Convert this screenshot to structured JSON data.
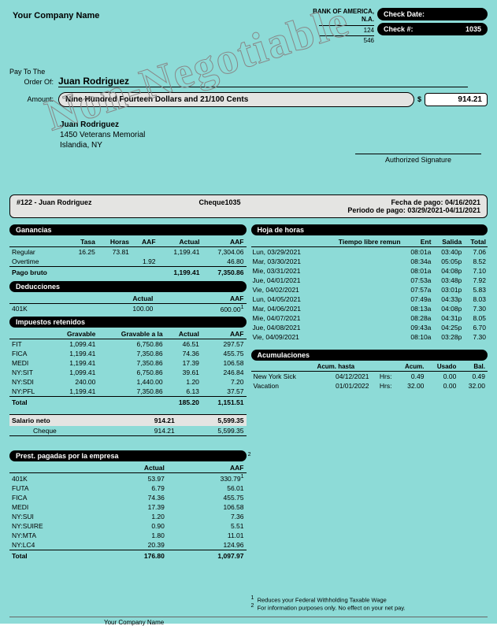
{
  "company_name": "Your Company Name",
  "bank": {
    "name": "BANK OF AMERICA,",
    "br": "N.A.",
    "n1": "124",
    "n2": "546"
  },
  "check": {
    "date_lbl": "Check Date:",
    "date_val": "",
    "num_lbl": "Check #:",
    "num_val": "1035"
  },
  "payto1": "Pay To The",
  "payto2": "Order Of:",
  "payee": "Juan Rodriguez",
  "amt_lbl": "Amount:",
  "amt_words": "Nine Hundred Fourteen Dollars and 21/100 Cents",
  "amt_val": "914.21",
  "addr": {
    "name": "Juan Rodriguez",
    "l1": "1450 Veterans Memorial",
    "l2": "Islandia, NY"
  },
  "sig": "Authorized Signature",
  "watermark": "Non-Negotiable",
  "stub": {
    "left": "#122 - Juan Rodriguez",
    "mid": "Cheque1035",
    "r1": "Fecha de pago: 04/16/2021",
    "r2": "Periodo de pago: 03/29/2021-04/11/2021"
  },
  "s": {
    "gan": "Ganancias",
    "ded": "Deducciones",
    "imp": "Impuestos retenidos",
    "net": "Salario neto",
    "prest": "Prest. pagadas por la empresa",
    "hoja": "Hoja de horas",
    "acum": "Acumulaciones"
  },
  "h": {
    "tasa": "Tasa",
    "horas": "Horas",
    "aaf": "AAF",
    "actual": "Actual",
    "gravable": "Gravable",
    "gravaaf": "Gravable a la",
    "tiempo": "Tiempo libre remun",
    "ent": "Ent",
    "sal": "Salida",
    "tot": "Total",
    "ahasta": "Acum. hasta",
    "acum": "Acum.",
    "usado": "Usado",
    "bal": "Bal."
  },
  "gan": {
    "rows": [
      {
        "l": "Regular",
        "tasa": "16.25",
        "horas": "73.81",
        "aaf1": "",
        "actual": "1,199.41",
        "aaf2": "7,304.06"
      },
      {
        "l": "Overtime",
        "tasa": "",
        "horas": "",
        "aaf1": "1.92",
        "actual": "",
        "aaf2": "46.80"
      }
    ],
    "tot": {
      "l": "Pago bruto",
      "actual": "1,199.41",
      "aaf": "7,350.86"
    }
  },
  "ded": {
    "rows": [
      {
        "l": "401K",
        "actual": "100.00",
        "aaf": "600.00"
      }
    ],
    "sup": "1"
  },
  "imp": {
    "rows": [
      {
        "l": "FIT",
        "g": "1,099.41",
        "ga": "6,750.86",
        "a": "46.51",
        "f": "297.57"
      },
      {
        "l": "FICA",
        "g": "1,199.41",
        "ga": "7,350.86",
        "a": "74.36",
        "f": "455.75"
      },
      {
        "l": "MEDI",
        "g": "1,199.41",
        "ga": "7,350.86",
        "a": "17.39",
        "f": "106.58"
      },
      {
        "l": "NY:SIT",
        "g": "1,099.41",
        "ga": "6,750.86",
        "a": "39.61",
        "f": "246.84"
      },
      {
        "l": "NY:SDI",
        "g": "240.00",
        "ga": "1,440.00",
        "a": "1.20",
        "f": "7.20"
      },
      {
        "l": "NY:PFL",
        "g": "1,199.41",
        "ga": "7,350.86",
        "a": "6.13",
        "f": "37.57"
      }
    ],
    "tot": {
      "l": "Total",
      "a": "185.20",
      "f": "1,151.51"
    }
  },
  "net": {
    "l": "Salario neto",
    "a": "914.21",
    "f": "5,599.35",
    "cheque": "Cheque",
    "ca": "914.21",
    "cf": "5,599.35"
  },
  "prest": {
    "rows": [
      {
        "l": "401K",
        "a": "53.97",
        "f": "330.79"
      },
      {
        "l": "FUTA",
        "a": "6.79",
        "f": "56.01"
      },
      {
        "l": "FICA",
        "a": "74.36",
        "f": "455.75"
      },
      {
        "l": "MEDI",
        "a": "17.39",
        "f": "106.58"
      },
      {
        "l": "NY:SUI",
        "a": "1.20",
        "f": "7.36"
      },
      {
        "l": "NY:SUIRE",
        "a": "0.90",
        "f": "5.51"
      },
      {
        "l": "NY:MTA",
        "a": "1.80",
        "f": "11.01"
      },
      {
        "l": "NY:LC4",
        "a": "20.39",
        "f": "124.96"
      }
    ],
    "tot": {
      "l": "Total",
      "a": "176.80",
      "f": "1,097.97"
    },
    "sup1": "1",
    "sup2": "2"
  },
  "time": [
    {
      "d": "Lun, 03/29/2021",
      "e": "08:01a",
      "s": "03:40p",
      "t": "7.06"
    },
    {
      "d": "Mar, 03/30/2021",
      "e": "08:34a",
      "s": "05:05p",
      "t": "8.52"
    },
    {
      "d": "Mie, 03/31/2021",
      "e": "08:01a",
      "s": "04:08p",
      "t": "7.10"
    },
    {
      "d": "Jue, 04/01/2021",
      "e": "07:53a",
      "s": "03:48p",
      "t": "7.92"
    },
    {
      "d": "Vie, 04/02/2021",
      "e": "07:57a",
      "s": "03:01p",
      "t": "5.83"
    },
    {
      "d": "Lun, 04/05/2021",
      "e": "07:49a",
      "s": "04:33p",
      "t": "8.03"
    },
    {
      "d": "Mar, 04/06/2021",
      "e": "08:13a",
      "s": "04:08p",
      "t": "7.30"
    },
    {
      "d": "Mie, 04/07/2021",
      "e": "08:28a",
      "s": "04:31p",
      "t": "8.05"
    },
    {
      "d": "Jue, 04/08/2021",
      "e": "09:43a",
      "s": "04:25p",
      "t": "6.70"
    },
    {
      "d": "Vie, 04/09/2021",
      "e": "08:10a",
      "s": "03:28p",
      "t": "7.30"
    }
  ],
  "accum": [
    {
      "l": "New York Sick",
      "d": "04/12/2021",
      "u": "Hrs:",
      "a": "0.49",
      "us": "0.00",
      "b": "0.49"
    },
    {
      "l": "Vacation",
      "d": "01/01/2022",
      "u": "Hrs:",
      "a": "32.00",
      "us": "0.00",
      "b": "32.00"
    }
  ],
  "notes": {
    "n1": "Reduces your Federal Withholding Taxable Wage",
    "n2": "For information purposes only. No effect on your net pay."
  },
  "footer_company": "Your Company Name"
}
